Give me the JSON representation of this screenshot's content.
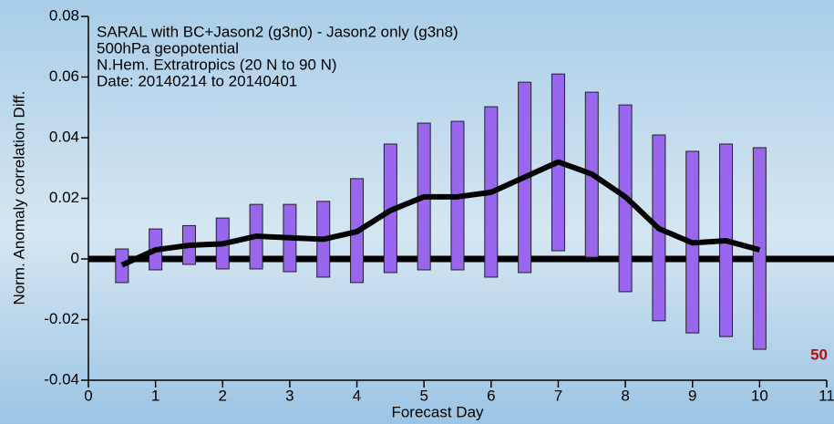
{
  "chart_data": {
    "type": "errorbar",
    "annotations": [
      "SARAL with BC+Jason2 (g3n0) - Jason2 only (g3n8)",
      "500hPa geopotential",
      "N.Hem. Extratropics (20 N to 90 N)",
      "Date: 20140214 to 20140401"
    ],
    "corner_label": "50",
    "x_label": "Forecast Day",
    "y_label": "Norm. Anomaly correlation Diff.",
    "x": [
      0.5,
      1,
      1.5,
      2,
      2.5,
      3,
      3.5,
      4,
      4.5,
      5,
      5.5,
      6,
      6.5,
      7,
      7.5,
      8,
      8.5,
      9,
      9.5,
      10
    ],
    "range": {
      "color": "#9966ee",
      "low": [
        -0.0078,
        -0.0036,
        -0.0018,
        -0.0033,
        -0.0033,
        -0.0042,
        -0.006,
        -0.0078,
        -0.0045,
        -0.0036,
        -0.0036,
        -0.006,
        -0.0045,
        0.0027,
        0.0006,
        -0.0108,
        -0.0204,
        -0.0244,
        -0.0256,
        -0.0298
      ],
      "high": [
        0.0033,
        0.0099,
        0.011,
        0.0135,
        0.018,
        0.018,
        0.019,
        0.0265,
        0.0379,
        0.0448,
        0.0454,
        0.0502,
        0.0583,
        0.061,
        0.055,
        0.0508,
        0.0409,
        0.0355,
        0.0379,
        0.0367
      ]
    },
    "line": {
      "color": "#000000",
      "values": [
        -0.002,
        0.003,
        0.0045,
        0.005,
        0.0075,
        0.007,
        0.0065,
        0.009,
        0.016,
        0.0205,
        0.0205,
        0.022,
        0.027,
        0.032,
        0.028,
        0.0205,
        0.01,
        0.0053,
        0.006,
        0.003
      ]
    },
    "xlim": [
      0,
      11
    ],
    "xticks": [
      0,
      1,
      2,
      3,
      4,
      5,
      6,
      7,
      8,
      9,
      10,
      11
    ],
    "ylim": [
      -0.04,
      0.08
    ],
    "yticks": [
      0.08,
      0.06,
      0.04,
      0.02,
      0,
      -0.02,
      -0.04
    ]
  }
}
